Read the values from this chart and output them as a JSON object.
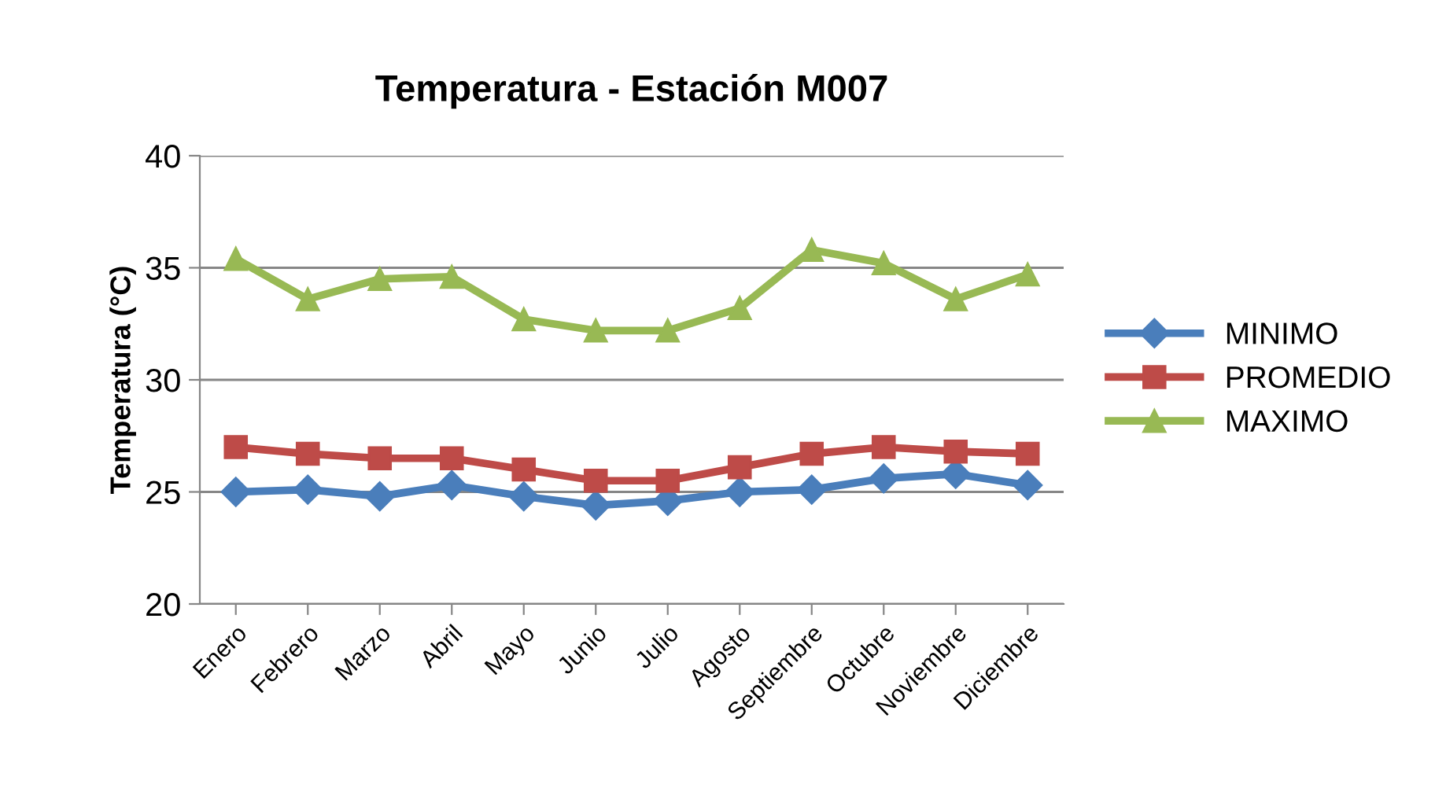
{
  "chart_data": {
    "type": "line",
    "title": "Temperatura - Estación M007",
    "ylabel": "Temperatura (°C)",
    "categories": [
      "Enero",
      "Febrero",
      "Marzo",
      "Abril",
      "Mayo",
      "Junio",
      "Julio",
      "Agosto",
      "Septiembre",
      "Octubre",
      "Noviembre",
      "Diciembre"
    ],
    "series": [
      {
        "name": "MINIMO",
        "color": "#4a7ebb",
        "marker": "diamond",
        "values": [
          25.0,
          25.1,
          24.8,
          25.3,
          24.8,
          24.4,
          24.6,
          25.0,
          25.1,
          25.6,
          25.8,
          25.3
        ]
      },
      {
        "name": "PROMEDIO",
        "color": "#be4b48",
        "marker": "square",
        "values": [
          27.0,
          26.7,
          26.5,
          26.5,
          26.0,
          25.5,
          25.5,
          26.1,
          26.7,
          27.0,
          26.8,
          26.7
        ]
      },
      {
        "name": "MAXIMO",
        "color": "#98b954",
        "marker": "triangle",
        "values": [
          35.4,
          33.6,
          34.5,
          34.6,
          32.7,
          32.2,
          32.2,
          33.2,
          35.8,
          35.2,
          33.6,
          34.7
        ]
      }
    ],
    "ylim": [
      20,
      40
    ],
    "yticks": [
      20,
      25,
      30,
      35,
      40
    ],
    "grid": "y",
    "legend": "right",
    "line_style": "solid"
  }
}
